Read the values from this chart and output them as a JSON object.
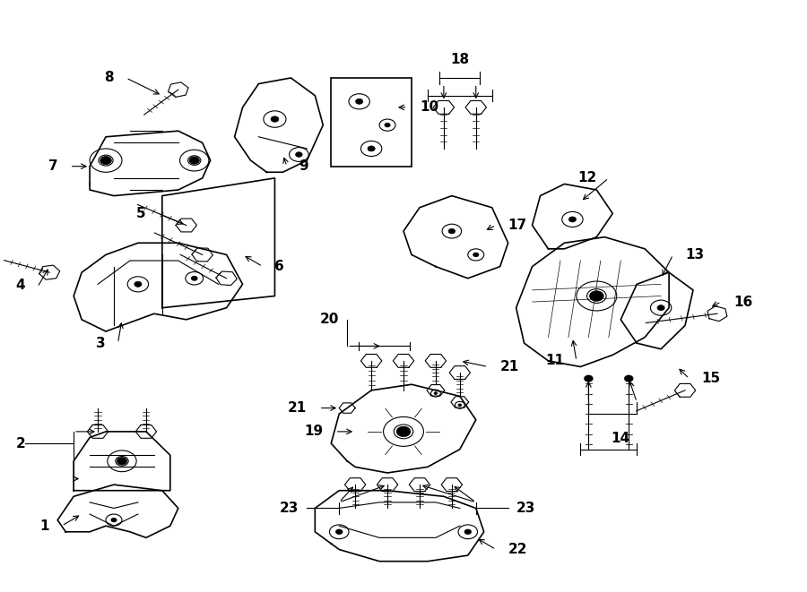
{
  "bg_color": "#ffffff",
  "line_color": "#000000",
  "text_color": "#000000",
  "fig_width": 9.0,
  "fig_height": 6.61,
  "dpi": 100
}
